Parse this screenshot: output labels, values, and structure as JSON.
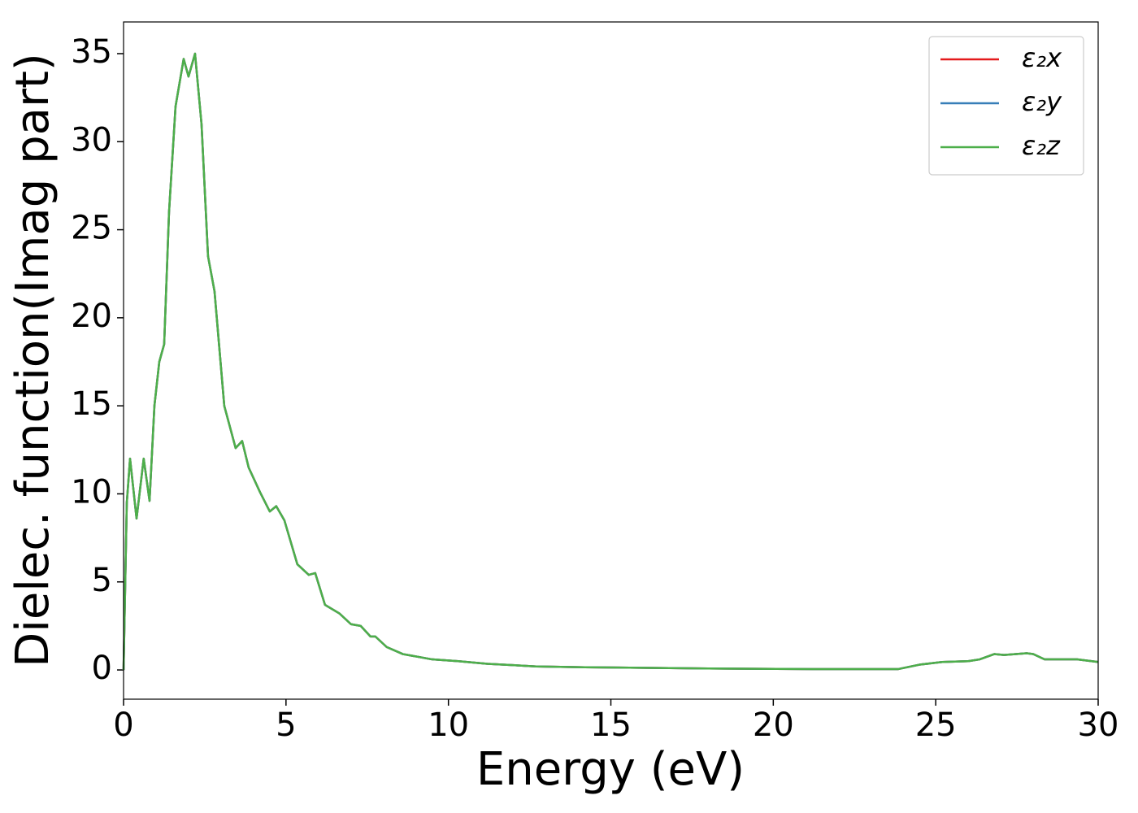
{
  "chart_data": {
    "type": "line",
    "x_label": "Energy (eV)",
    "y_label": "Dielec. function(Imag part)",
    "xlim": [
      0,
      30
    ],
    "xticks": [
      0,
      5,
      10,
      15,
      20,
      25,
      30
    ],
    "ylim": [
      -1.66,
      36.8
    ],
    "yticks": [
      0,
      5,
      10,
      15,
      20,
      25,
      30,
      35
    ],
    "legend_position": "upper right",
    "x": [
      0,
      0.1,
      0.2,
      0.4,
      0.62,
      0.8,
      0.95,
      1.1,
      1.25,
      1.4,
      1.6,
      1.85,
      2.0,
      2.2,
      2.4,
      2.6,
      2.8,
      3.1,
      3.45,
      3.65,
      3.85,
      4.2,
      4.5,
      4.7,
      4.95,
      5.35,
      5.7,
      5.9,
      6.2,
      6.65,
      7.0,
      7.3,
      7.6,
      7.75,
      8.1,
      8.6,
      9.5,
      10.3,
      11.2,
      12.7,
      14.2,
      16.2,
      18,
      21.2,
      23.85,
      24.5,
      25.2,
      26,
      26.35,
      26.8,
      27.1,
      27.8,
      28,
      28.35,
      29.2,
      29.35,
      30
    ],
    "series": [
      {
        "name": "ε₂x",
        "color": "#e41a1c",
        "values": [
          0,
          9.5,
          12,
          8.6,
          12,
          9.6,
          15,
          17.5,
          18.5,
          26,
          32,
          34.7,
          33.7,
          35,
          31,
          23.5,
          21.5,
          15,
          12.6,
          13,
          11.5,
          10.1,
          9,
          9.3,
          8.5,
          6,
          5.4,
          5.5,
          3.7,
          3.2,
          2.6,
          2.5,
          1.9,
          1.9,
          1.3,
          0.9,
          0.6,
          0.5,
          0.35,
          0.2,
          0.15,
          0.12,
          0.08,
          0.05,
          0.05,
          0.3,
          0.45,
          0.5,
          0.6,
          0.9,
          0.85,
          0.95,
          0.9,
          0.6,
          0.6,
          0.6,
          0.45
        ]
      },
      {
        "name": "ε₂y",
        "color": "#377eb8",
        "values": [
          0,
          9.5,
          12,
          8.6,
          12,
          9.6,
          15,
          17.5,
          18.5,
          26,
          32,
          34.7,
          33.7,
          35,
          31,
          23.5,
          21.5,
          15,
          12.6,
          13,
          11.5,
          10.1,
          9,
          9.3,
          8.5,
          6,
          5.4,
          5.5,
          3.7,
          3.2,
          2.6,
          2.5,
          1.9,
          1.9,
          1.3,
          0.9,
          0.6,
          0.5,
          0.35,
          0.2,
          0.15,
          0.12,
          0.08,
          0.05,
          0.05,
          0.3,
          0.45,
          0.5,
          0.6,
          0.9,
          0.85,
          0.95,
          0.9,
          0.6,
          0.6,
          0.6,
          0.45
        ]
      },
      {
        "name": "ε₂z",
        "color": "#4daf4a",
        "values": [
          0,
          9.5,
          12,
          8.6,
          12,
          9.6,
          15,
          17.5,
          18.5,
          26,
          32,
          34.7,
          33.7,
          35,
          31,
          23.5,
          21.5,
          15,
          12.6,
          13,
          11.5,
          10.1,
          9,
          9.3,
          8.5,
          6,
          5.4,
          5.5,
          3.7,
          3.2,
          2.6,
          2.5,
          1.9,
          1.9,
          1.3,
          0.9,
          0.6,
          0.5,
          0.35,
          0.2,
          0.15,
          0.12,
          0.08,
          0.05,
          0.05,
          0.3,
          0.45,
          0.5,
          0.6,
          0.9,
          0.85,
          0.95,
          0.9,
          0.6,
          0.6,
          0.6,
          0.45
        ]
      }
    ]
  }
}
